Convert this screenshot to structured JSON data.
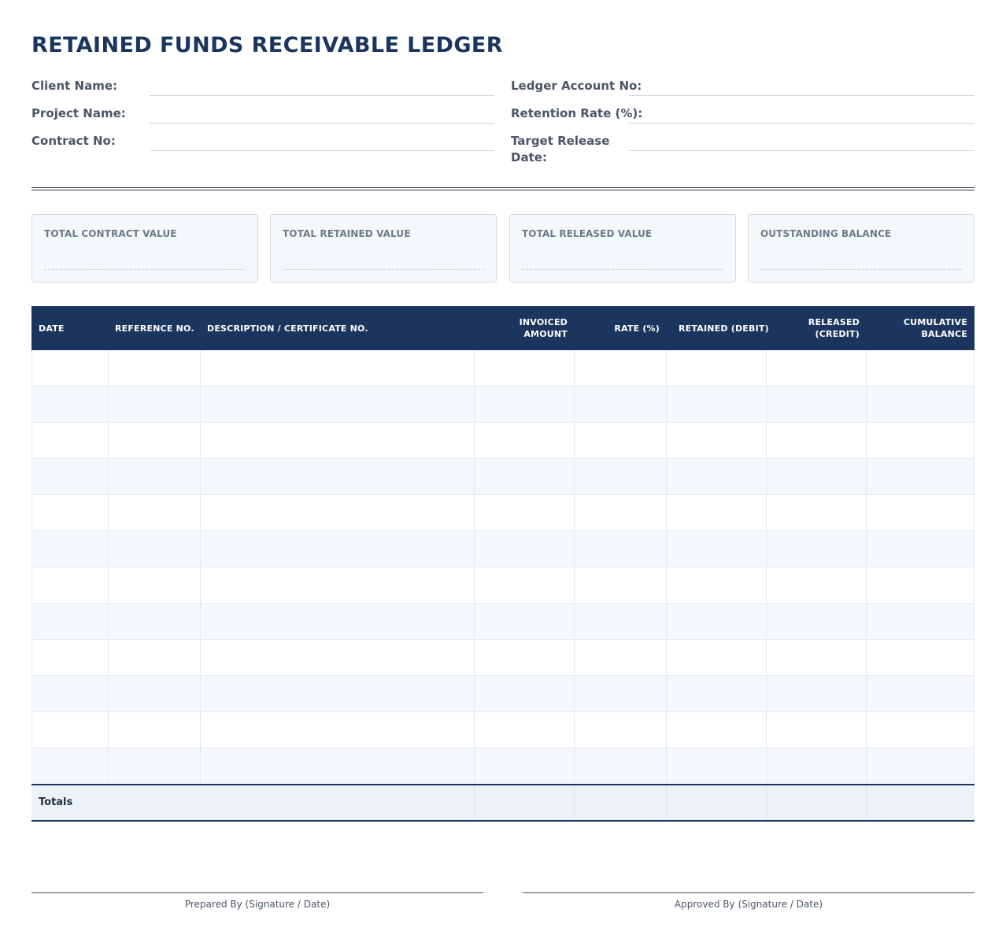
{
  "title": "RETAINED FUNDS RECEIVABLE LEDGER",
  "meta": {
    "left": [
      {
        "label": "Client Name:",
        "value": ""
      },
      {
        "label": "Project Name:",
        "value": ""
      },
      {
        "label": "Contract No:",
        "value": ""
      }
    ],
    "right": [
      {
        "label": "Ledger Account No:",
        "value": ""
      },
      {
        "label": "Retention Rate (%):",
        "value": ""
      },
      {
        "label": "Target Release Date:",
        "value": ""
      }
    ]
  },
  "summary": [
    {
      "label": "TOTAL CONTRACT VALUE",
      "value": ""
    },
    {
      "label": "TOTAL RETAINED VALUE",
      "value": ""
    },
    {
      "label": "TOTAL RELEASED VALUE",
      "value": ""
    },
    {
      "label": "OUTSTANDING BALANCE",
      "value": ""
    }
  ],
  "table": {
    "headers": [
      "DATE",
      "REFERENCE NO.",
      "DESCRIPTION / CERTIFICATE NO.",
      "INVOICED AMOUNT",
      "RATE (%)",
      "RETAINED (DEBIT)",
      "RELEASED (CREDIT)",
      "CUMULATIVE BALANCE"
    ],
    "rows": [
      [
        "",
        "",
        "",
        "",
        "",
        "",
        "",
        ""
      ],
      [
        "",
        "",
        "",
        "",
        "",
        "",
        "",
        ""
      ],
      [
        "",
        "",
        "",
        "",
        "",
        "",
        "",
        ""
      ],
      [
        "",
        "",
        "",
        "",
        "",
        "",
        "",
        ""
      ],
      [
        "",
        "",
        "",
        "",
        "",
        "",
        "",
        ""
      ],
      [
        "",
        "",
        "",
        "",
        "",
        "",
        "",
        ""
      ],
      [
        "",
        "",
        "",
        "",
        "",
        "",
        "",
        ""
      ],
      [
        "",
        "",
        "",
        "",
        "",
        "",
        "",
        ""
      ],
      [
        "",
        "",
        "",
        "",
        "",
        "",
        "",
        ""
      ],
      [
        "",
        "",
        "",
        "",
        "",
        "",
        "",
        ""
      ],
      [
        "",
        "",
        "",
        "",
        "",
        "",
        "",
        ""
      ],
      [
        "",
        "",
        "",
        "",
        "",
        "",
        "",
        ""
      ]
    ],
    "totals_label": "Totals"
  },
  "signatures": {
    "prepared": "Prepared By (Signature / Date)",
    "approved": "Approved By (Signature / Date)"
  }
}
